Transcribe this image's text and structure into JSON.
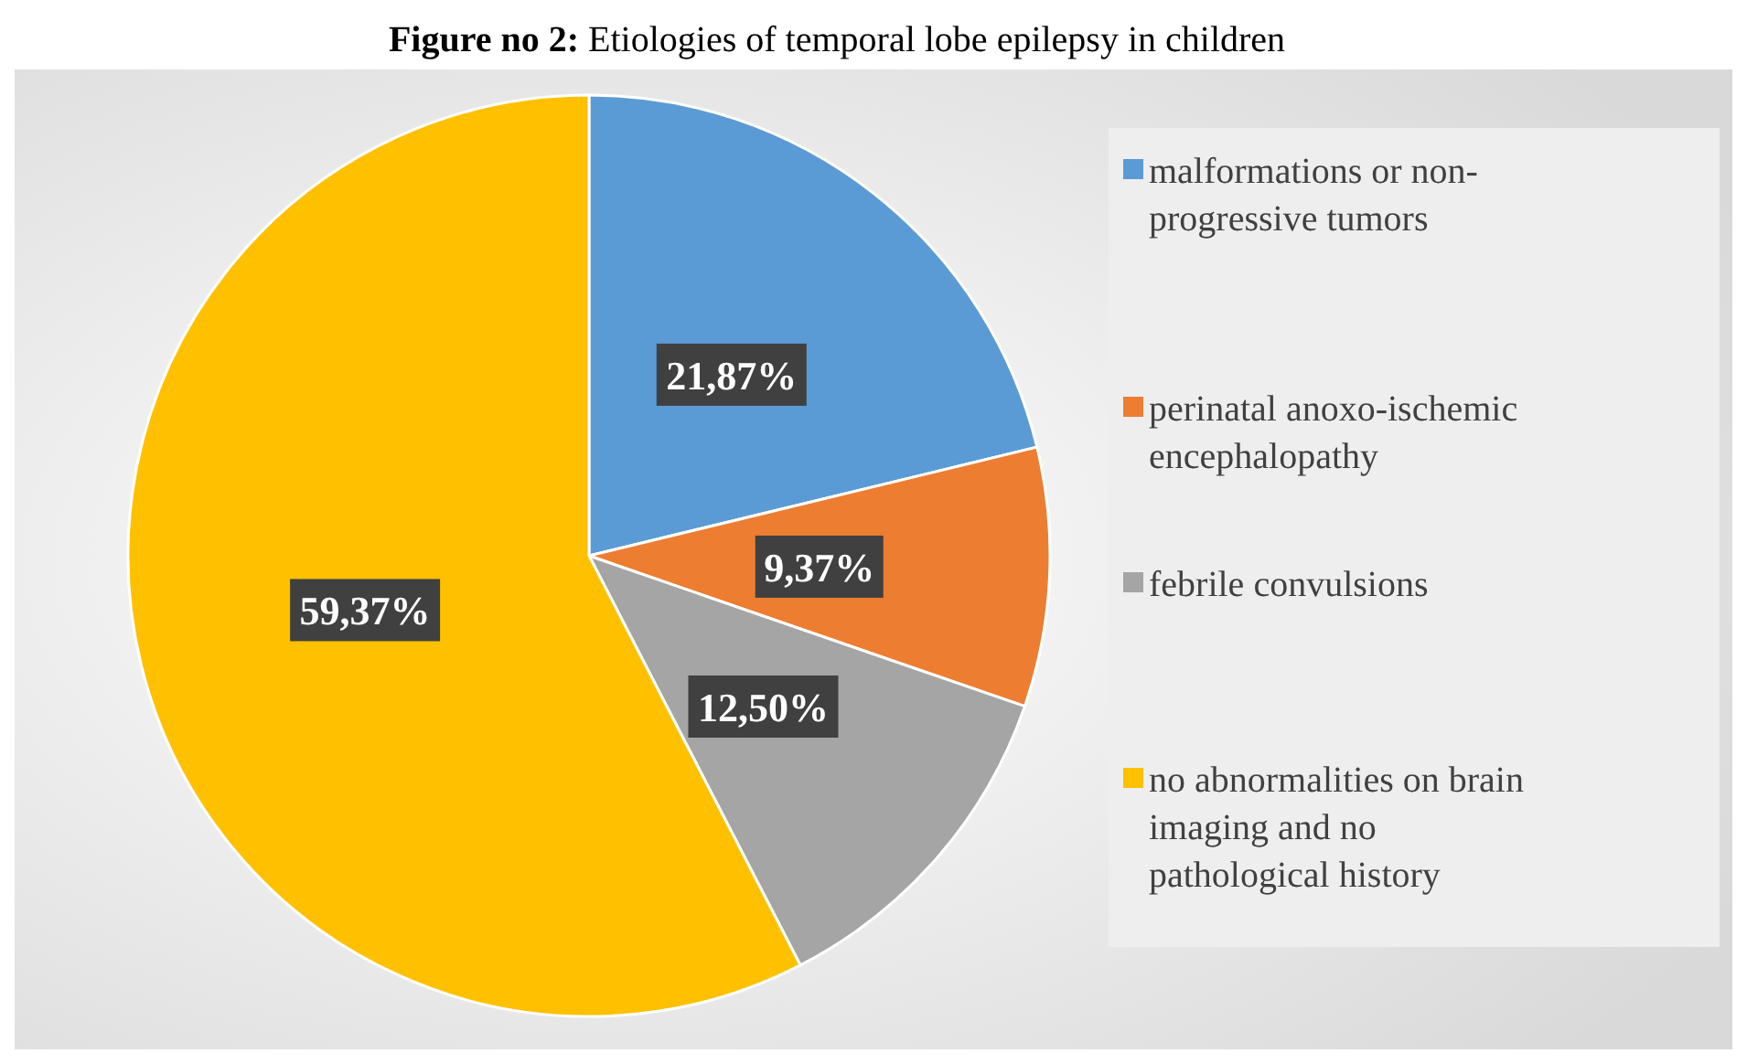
{
  "chart_data": {
    "type": "pie",
    "title": "Figure no 2: Etiologies of temporal lobe epilepsy in children",
    "categories": [
      "malformations or non-progressive tumors",
      "perinatal anoxo-ischemic encephalopathy",
      "febrile convulsions",
      "no abnormalities on brain imaging and no pathological history"
    ],
    "values": [
      21.87,
      9.37,
      12.5,
      59.37
    ],
    "colors": [
      "#5b9bd5",
      "#ed7d31",
      "#a5a5a5",
      "#ffc000"
    ],
    "value_labels": [
      "21,87%",
      "9,37%",
      "12,50%",
      "59,37%"
    ],
    "legend": "right"
  }
}
